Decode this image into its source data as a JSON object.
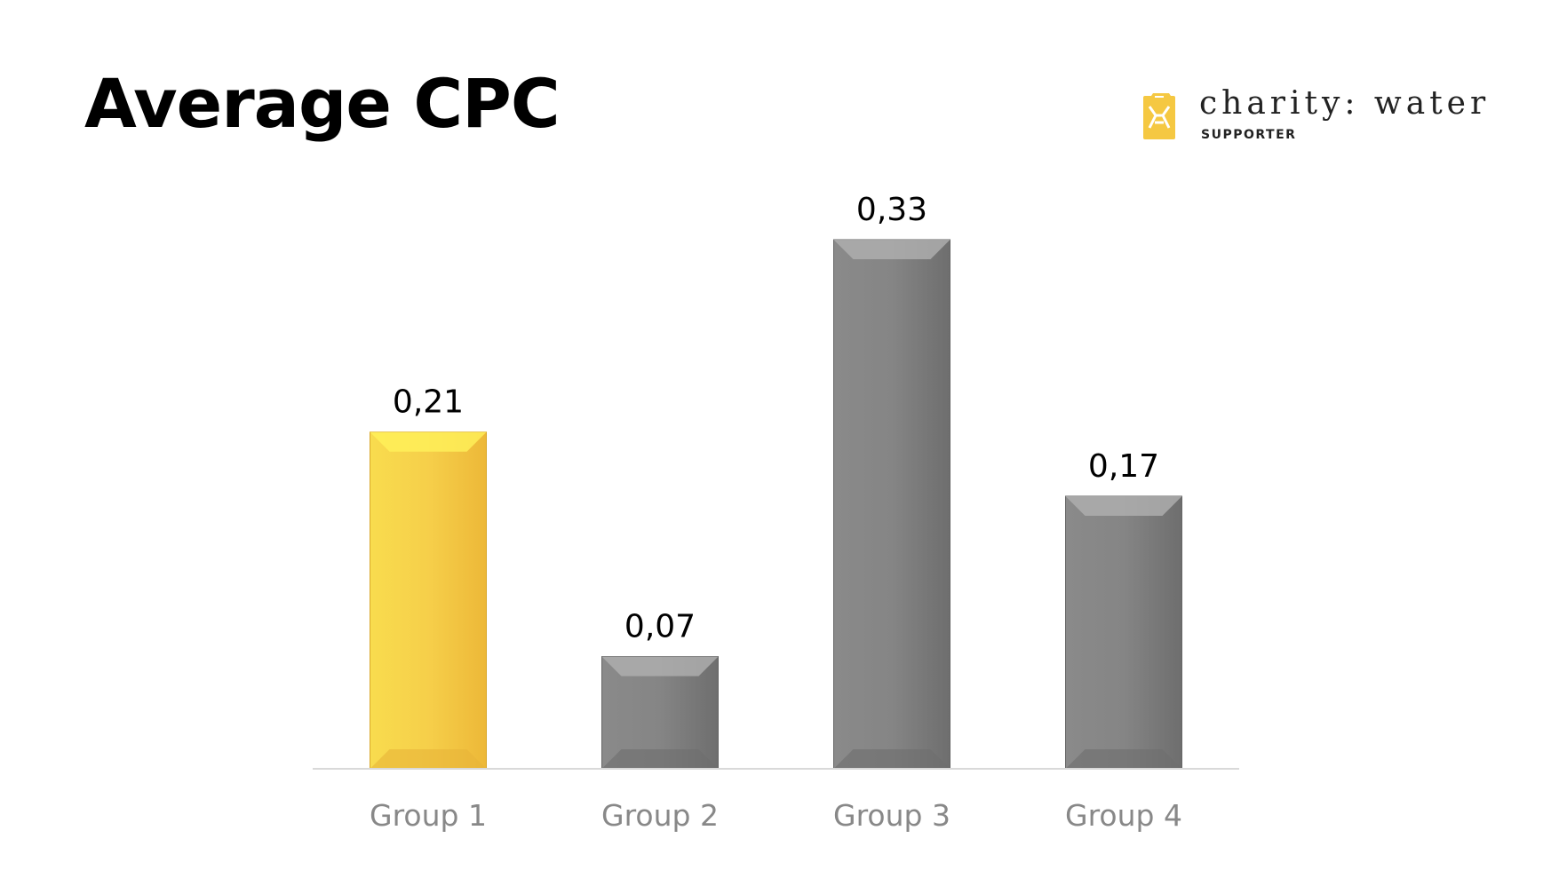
{
  "chart_data": {
    "type": "bar",
    "title": "Average CPC",
    "categories": [
      "Group 1",
      "Group 2",
      "Group 3",
      "Group 4"
    ],
    "values": [
      0.21,
      0.07,
      0.33,
      0.17
    ],
    "value_labels": [
      "0,21",
      "0,07",
      "0,33",
      "0,17"
    ],
    "colors": [
      "#F5C842",
      "#858585",
      "#858585",
      "#858585"
    ],
    "ylim": [
      0,
      0.33
    ],
    "grid": false,
    "legend": "none"
  },
  "logo": {
    "name": "charity: water",
    "subtitle": "SUPPORTER",
    "icon": "jerry-can-icon",
    "color": "#F5C842"
  }
}
